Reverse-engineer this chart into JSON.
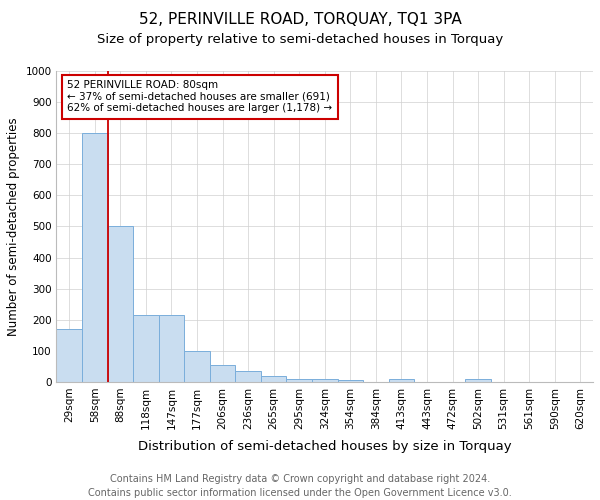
{
  "title": "52, PERINVILLE ROAD, TORQUAY, TQ1 3PA",
  "subtitle": "Size of property relative to semi-detached houses in Torquay",
  "xlabel": "Distribution of semi-detached houses by size in Torquay",
  "ylabel": "Number of semi-detached properties",
  "categories": [
    "29sqm",
    "58sqm",
    "88sqm",
    "118sqm",
    "147sqm",
    "177sqm",
    "206sqm",
    "236sqm",
    "265sqm",
    "295sqm",
    "324sqm",
    "354sqm",
    "384sqm",
    "413sqm",
    "443sqm",
    "472sqm",
    "502sqm",
    "531sqm",
    "561sqm",
    "590sqm",
    "620sqm"
  ],
  "values": [
    170,
    800,
    500,
    215,
    215,
    100,
    55,
    35,
    20,
    10,
    10,
    5,
    0,
    8,
    0,
    0,
    8,
    0,
    0,
    0,
    0
  ],
  "bar_color": "#c9ddf0",
  "bar_edge_color": "#7aaedb",
  "red_line_x": 1.5,
  "red_line_color": "#cc0000",
  "annotation_text": "52 PERINVILLE ROAD: 80sqm\n← 37% of semi-detached houses are smaller (691)\n62% of semi-detached houses are larger (1,178) →",
  "annotation_box_color": "#ffffff",
  "annotation_box_edge": "#cc0000",
  "ylim": [
    0,
    1000
  ],
  "yticks": [
    0,
    100,
    200,
    300,
    400,
    500,
    600,
    700,
    800,
    900,
    1000
  ],
  "grid_color": "#d0d0d0",
  "footer": "Contains HM Land Registry data © Crown copyright and database right 2024.\nContains public sector information licensed under the Open Government Licence v3.0.",
  "title_fontsize": 11,
  "subtitle_fontsize": 9.5,
  "xlabel_fontsize": 9.5,
  "ylabel_fontsize": 8.5,
  "tick_fontsize": 7.5,
  "footer_fontsize": 7,
  "annotation_fontsize": 7.5
}
